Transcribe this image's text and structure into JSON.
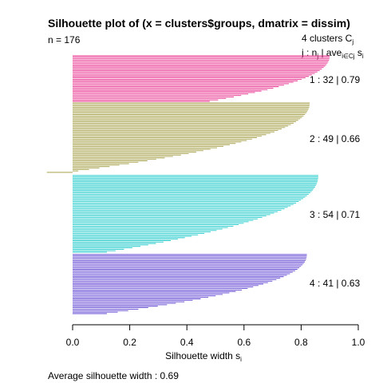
{
  "chart_data": {
    "type": "bar",
    "orientation": "horizontal",
    "title": "Silhouette plot of (x = clusters$groups, dmatrix = dissim)",
    "n_label": "n = 176",
    "header_clusters": "4  clusters  C",
    "header_clusters_sub": "j",
    "header_cols_prefix": "j :  n",
    "header_cols_nsub": "j",
    "header_cols_mid": " | ave",
    "header_cols_avesub": "i∈Cj",
    "header_cols_s": "  s",
    "header_cols_ssub": "i",
    "xlabel": "Silhouette width s",
    "xlabel_sub": "i",
    "footer": "Average silhouette width :  0.69",
    "xlim": [
      0,
      1
    ],
    "xticks": [
      "0.0",
      "0.2",
      "0.4",
      "0.6",
      "0.8",
      "1.0"
    ],
    "grid": false,
    "clusters": [
      {
        "id": 1,
        "n": 32,
        "avg": 0.79,
        "color": "#E7298A",
        "label": "1 :   32  |  0.79",
        "max": 0.9,
        "min": 0.48,
        "tail_neg": 0
      },
      {
        "id": 2,
        "n": 49,
        "avg": 0.66,
        "color": "#A6A04A",
        "label": "2 :   49  |  0.66",
        "max": 0.83,
        "min": 0.02,
        "tail_neg": 1
      },
      {
        "id": 3,
        "n": 54,
        "avg": 0.71,
        "color": "#1BC9C9",
        "label": "3 :   54  |  0.71",
        "max": 0.86,
        "min": 0.12,
        "tail_neg": 0
      },
      {
        "id": 4,
        "n": 41,
        "avg": 0.63,
        "color": "#5B3FD0",
        "label": "4 :   41  |  0.63",
        "max": 0.82,
        "min": 0.12,
        "tail_neg": 0
      }
    ],
    "negative_value": -0.09
  }
}
